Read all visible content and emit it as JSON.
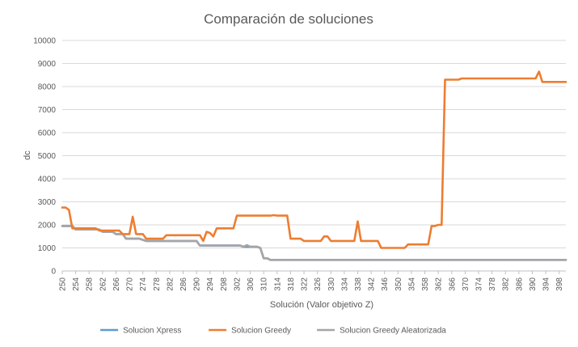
{
  "chart_data": {
    "type": "line",
    "title": "Comparación de soluciones",
    "xlabel": "Solución (Valor objetivo Z)",
    "ylabel": "dc",
    "xlim": [
      250,
      400
    ],
    "ylim": [
      0,
      10000
    ],
    "yticks": [
      0,
      1000,
      2000,
      3000,
      4000,
      5000,
      6000,
      7000,
      8000,
      9000,
      10000
    ],
    "xticks": [
      250,
      254,
      258,
      262,
      266,
      270,
      274,
      278,
      282,
      286,
      290,
      294,
      298,
      302,
      306,
      310,
      314,
      318,
      322,
      326,
      330,
      334,
      338,
      342,
      346,
      350,
      354,
      358,
      362,
      366,
      370,
      374,
      378,
      382,
      386,
      390,
      394,
      398
    ],
    "grid": "horizontal",
    "legend_position": "bottom",
    "series": [
      {
        "name": "Solucion Xpress",
        "color": "#5B9BD5",
        "points": [
          [
            250,
            1950
          ],
          [
            253,
            1950
          ],
          [
            254,
            1800
          ],
          [
            261,
            1800
          ],
          [
            262,
            1700
          ],
          [
            265,
            1700
          ],
          [
            266,
            1600
          ],
          [
            268,
            1600
          ],
          [
            269,
            1400
          ],
          [
            273,
            1400
          ],
          [
            275,
            1300
          ],
          [
            290,
            1300
          ],
          [
            291,
            1100
          ],
          [
            303,
            1100
          ],
          [
            304,
            1050
          ],
          [
            308,
            1050
          ],
          [
            309,
            1000
          ],
          [
            310,
            550
          ],
          [
            311,
            550
          ],
          [
            312,
            480
          ],
          [
            400,
            480
          ]
        ]
      },
      {
        "name": "Solucion Greedy",
        "color": "#ED7D31",
        "points": [
          [
            250,
            2750
          ],
          [
            251,
            2750
          ],
          [
            252,
            2650
          ],
          [
            253,
            1850
          ],
          [
            256,
            1850
          ],
          [
            260,
            1850
          ],
          [
            261,
            1750
          ],
          [
            267,
            1750
          ],
          [
            268,
            1600
          ],
          [
            270,
            1600
          ],
          [
            271,
            2350
          ],
          [
            272,
            1600
          ],
          [
            274,
            1600
          ],
          [
            275,
            1400
          ],
          [
            280,
            1400
          ],
          [
            281,
            1550
          ],
          [
            291,
            1550
          ],
          [
            292,
            1300
          ],
          [
            293,
            1700
          ],
          [
            294,
            1650
          ],
          [
            295,
            1500
          ],
          [
            296,
            1850
          ],
          [
            301,
            1850
          ],
          [
            302,
            2400
          ],
          [
            312,
            2400
          ],
          [
            313,
            2420
          ],
          [
            314,
            2400
          ],
          [
            317,
            2400
          ],
          [
            318,
            1400
          ],
          [
            321,
            1400
          ],
          [
            322,
            1300
          ],
          [
            327,
            1300
          ],
          [
            328,
            1500
          ],
          [
            329,
            1500
          ],
          [
            330,
            1300
          ],
          [
            337,
            1300
          ],
          [
            338,
            2150
          ],
          [
            339,
            1300
          ],
          [
            344,
            1300
          ],
          [
            345,
            1000
          ],
          [
            352,
            1000
          ],
          [
            353,
            1150
          ],
          [
            359,
            1150
          ],
          [
            360,
            1950
          ],
          [
            361,
            1950
          ],
          [
            362,
            2000
          ],
          [
            363,
            2000
          ],
          [
            364,
            8300
          ],
          [
            368,
            8300
          ],
          [
            369,
            8350
          ],
          [
            391,
            8350
          ],
          [
            392,
            8650
          ],
          [
            393,
            8200
          ],
          [
            400,
            8200
          ]
        ]
      },
      {
        "name": "Solucion Greedy Aleatorizada",
        "color": "#A5A5A5",
        "points": [
          [
            250,
            1950
          ],
          [
            253,
            1950
          ],
          [
            254,
            1800
          ],
          [
            261,
            1800
          ],
          [
            262,
            1700
          ],
          [
            265,
            1700
          ],
          [
            266,
            1600
          ],
          [
            268,
            1600
          ],
          [
            269,
            1400
          ],
          [
            273,
            1400
          ],
          [
            275,
            1300
          ],
          [
            290,
            1300
          ],
          [
            291,
            1100
          ],
          [
            303,
            1100
          ],
          [
            304,
            1050
          ],
          [
            305,
            1120
          ],
          [
            306,
            1050
          ],
          [
            308,
            1050
          ],
          [
            309,
            1000
          ],
          [
            310,
            550
          ],
          [
            311,
            550
          ],
          [
            312,
            480
          ],
          [
            400,
            480
          ]
        ]
      }
    ]
  }
}
